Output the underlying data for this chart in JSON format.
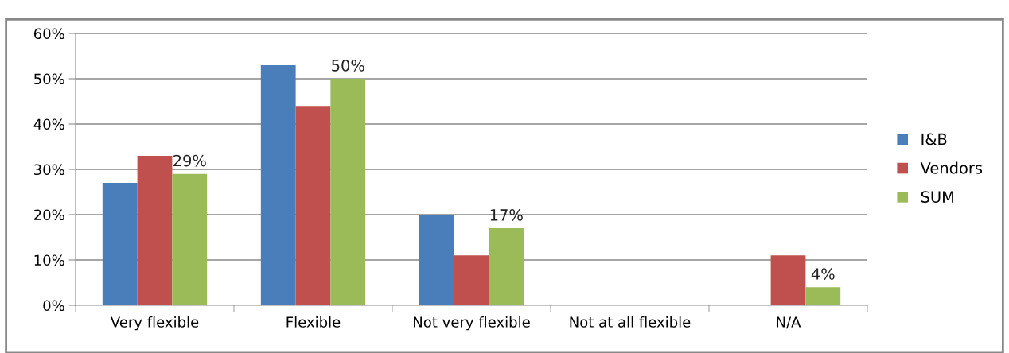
{
  "chart_data": {
    "type": "bar",
    "categories": [
      "Very flexible",
      "Flexible",
      "Not very flexible",
      "Not at all flexible",
      "N/A"
    ],
    "series": [
      {
        "name": "I&B",
        "color": "#4a7ebb",
        "values": [
          27,
          53,
          20,
          0,
          0
        ]
      },
      {
        "name": "Vendors",
        "color": "#c0504d",
        "values": [
          33,
          44,
          11,
          0,
          11
        ]
      },
      {
        "name": "SUM",
        "color": "#9bbb59",
        "values": [
          29,
          50,
          17,
          0,
          4
        ],
        "value_labels": [
          "29%",
          "50%",
          "17%",
          null,
          "4%"
        ]
      }
    ],
    "ylim": [
      0,
      60
    ],
    "yticks": [
      {
        "value": 0,
        "label": "0%"
      },
      {
        "value": 10,
        "label": "10%"
      },
      {
        "value": 20,
        "label": "20%"
      },
      {
        "value": 30,
        "label": "30%"
      },
      {
        "value": 40,
        "label": "40%"
      },
      {
        "value": 50,
        "label": "50%"
      },
      {
        "value": 60,
        "label": "60%"
      }
    ],
    "grid": "y",
    "legend": "right"
  }
}
